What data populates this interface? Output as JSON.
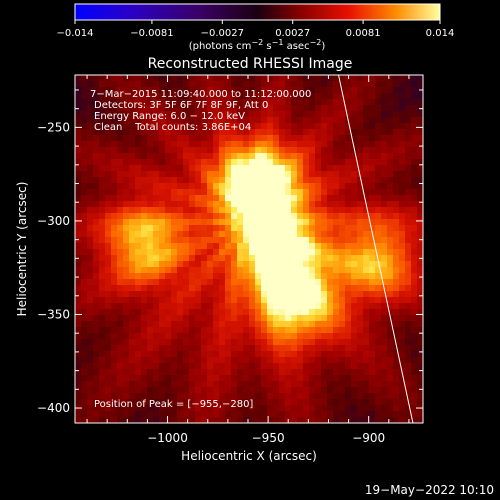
{
  "chart_data": {
    "type": "heatmap",
    "title": "Reconstructed RHESSI Image",
    "xlabel": "Heliocentric X (arcsec)",
    "ylabel": "Heliocentric Y (arcsec)",
    "xlim": [
      -1046,
      -873
    ],
    "ylim": [
      -408,
      -222
    ],
    "x_ticks": [
      -1000,
      -950,
      -900
    ],
    "x_tick_labels": [
      "−1000",
      "−950",
      "−900"
    ],
    "y_ticks": [
      -250,
      -300,
      -350,
      -400
    ],
    "y_tick_labels": [
      "−250",
      "−300",
      "−350",
      "−400"
    ],
    "colorbar": {
      "range": [
        -0.014,
        0.014
      ],
      "ticks": [
        -0.014,
        -0.0081,
        -0.0027,
        0.0027,
        0.0081,
        0.014
      ],
      "tick_labels": [
        "−0.014",
        "−0.0081",
        "−0.0027",
        "0.0027",
        "0.0081",
        "0.014"
      ],
      "unit_prefix": "(photons cm",
      "unit_sup1": "−2",
      "unit_mid1": " s",
      "unit_sup2": "−1",
      "unit_mid2": " asec",
      "unit_sup3": "−2",
      "unit_suffix": ")"
    },
    "annotations": {
      "time_range": "7−Mar−2015 11:09:40.000 to 11:12:00.000",
      "detectors": "Detectors: 3F 5F 6F 7F 8F 9F, Att 0",
      "energy": "Energy Range: 6.0 − 12.0 keV",
      "clean": "Clean    Total counts: 3.86E+04",
      "peak": "Position of Peak = [−955,−280]"
    },
    "sources": [
      {
        "x": -955,
        "y": -280,
        "value": 0.014
      },
      {
        "x": -945,
        "y": -315,
        "value": 0.0105
      },
      {
        "x": -935,
        "y": -345,
        "value": 0.0095
      },
      {
        "x": -1012,
        "y": -312,
        "value": 0.0085
      },
      {
        "x": -895,
        "y": -320,
        "value": 0.0082
      }
    ],
    "limb_line": [
      {
        "x": -915,
        "y": -222
      },
      {
        "x": -878,
        "y": -408
      }
    ]
  },
  "footer": {
    "timestamp": "19−May−2022 10:10"
  },
  "colors": {
    "limb": "#ffffff",
    "background": "#000000"
  }
}
